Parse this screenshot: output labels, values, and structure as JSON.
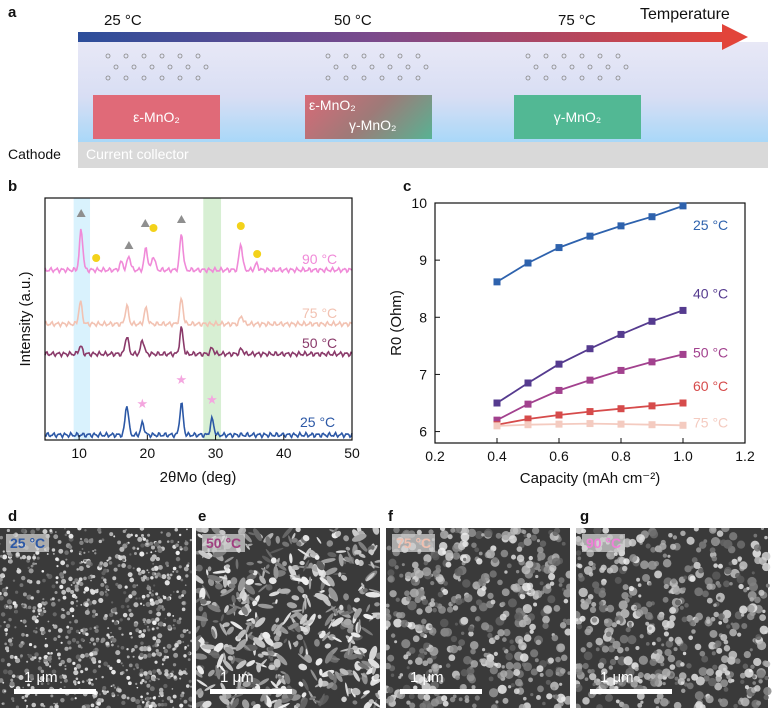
{
  "panel_a": {
    "letter": "a",
    "temps": [
      "25 °C",
      "50 °C",
      "75 °C"
    ],
    "arrow_label": "Temperature",
    "blocks": {
      "left": "ε-MnO₂",
      "middle_top": "ε-MnO₂",
      "middle_bottom": "γ-MnO₂",
      "right": "γ-MnO₂"
    },
    "cathode_label": "Cathode",
    "collector_label": "Current collector",
    "colors": {
      "cold": "#2c4e9b",
      "hot": "#e2443a",
      "eps": "#e06a78",
      "gamma": "#52b894"
    }
  },
  "panel_b": {
    "letter": "b",
    "chart_data": {
      "type": "line",
      "xlabel": "2θMo (deg)",
      "ylabel": "Intensity (a.u.)",
      "xlim": [
        5,
        50
      ],
      "xticks": [
        "10",
        "20",
        "30",
        "40",
        "50"
      ],
      "series": [
        {
          "name": "25 °C",
          "color": "#2c58a6",
          "offset": 0,
          "peaks": [
            [
              17.0,
              30
            ],
            [
              19.3,
              12
            ],
            [
              25.0,
              32
            ],
            [
              29.5,
              16
            ]
          ]
        },
        {
          "name": "50 °C",
          "color": "#8a3a6a",
          "offset": 1,
          "peaks": [
            [
              10.2,
              8
            ],
            [
              17.0,
              18
            ],
            [
              19.3,
              14
            ],
            [
              25.0,
              26
            ],
            [
              29.5,
              6
            ],
            [
              33.8,
              5
            ]
          ]
        },
        {
          "name": "75 °C",
          "color": "#f2c2b2",
          "offset": 2,
          "peaks": [
            [
              10.2,
              22
            ],
            [
              17.0,
              18
            ],
            [
              19.8,
              16
            ],
            [
              25.0,
              25
            ],
            [
              33.8,
              8
            ]
          ]
        },
        {
          "name": "90 °C",
          "color": "#f08ad8",
          "offset": 3,
          "peaks": [
            [
              10.3,
              40
            ],
            [
              16.2,
              8
            ],
            [
              17.3,
              14
            ],
            [
              19.8,
              22
            ],
            [
              20.9,
              14
            ],
            [
              25.0,
              36
            ],
            [
              33.7,
              26
            ],
            [
              36.0,
              6
            ]
          ]
        }
      ],
      "highlight_bands": [
        [
          9.2,
          11.6,
          "#cfeffc"
        ],
        [
          28.2,
          30.8,
          "#cdebc8"
        ]
      ],
      "markers": {
        "triangles_x": [
          10.3,
          17.3,
          19.7,
          25.0
        ],
        "circles_x": [
          12.5,
          20.9,
          33.7,
          36.1
        ],
        "stars_x": [
          19.3,
          25.0,
          29.5
        ]
      }
    }
  },
  "panel_c": {
    "letter": "c",
    "chart_data": {
      "type": "line",
      "xlabel": "Capacity (mAh cm⁻²)",
      "ylabel": "R0 (Ohm)",
      "xlim": [
        0.2,
        1.2
      ],
      "ylim": [
        5.8,
        10
      ],
      "xticks": [
        "0.2",
        "0.4",
        "0.6",
        "0.8",
        "1.0",
        "1.2"
      ],
      "yticks": [
        "6",
        "7",
        "8",
        "9",
        "10"
      ],
      "x": [
        0.4,
        0.5,
        0.6,
        0.7,
        0.8,
        0.9,
        1.0
      ],
      "series": [
        {
          "name": "25 °C",
          "color": "#2e62ad",
          "values": [
            8.62,
            8.95,
            9.22,
            9.42,
            9.6,
            9.76,
            9.95
          ]
        },
        {
          "name": "40 °C",
          "color": "#553b8f",
          "values": [
            6.5,
            6.85,
            7.18,
            7.45,
            7.7,
            7.93,
            8.12
          ]
        },
        {
          "name": "50 °C",
          "color": "#a2418e",
          "values": [
            6.2,
            6.48,
            6.72,
            6.9,
            7.07,
            7.22,
            7.35
          ]
        },
        {
          "name": "60 °C",
          "color": "#d64b4b",
          "values": [
            6.12,
            6.22,
            6.29,
            6.35,
            6.4,
            6.45,
            6.5
          ]
        },
        {
          "name": "75 °C",
          "color": "#f4cbc0",
          "values": [
            6.1,
            6.12,
            6.13,
            6.14,
            6.13,
            6.12,
            6.11
          ]
        }
      ]
    }
  },
  "sem": [
    {
      "letter": "d",
      "temp": "25 °C",
      "temp_color": "#2c58a6",
      "scale": "1 μm"
    },
    {
      "letter": "e",
      "temp": "50 °C",
      "temp_color": "#a04080",
      "scale": "1 μm"
    },
    {
      "letter": "f",
      "temp": "75 °C",
      "temp_color": "#f0c0b0",
      "scale": "1 μm"
    },
    {
      "letter": "g",
      "temp": "90 °C",
      "temp_color": "#f080d8",
      "scale": "1 μm"
    }
  ]
}
